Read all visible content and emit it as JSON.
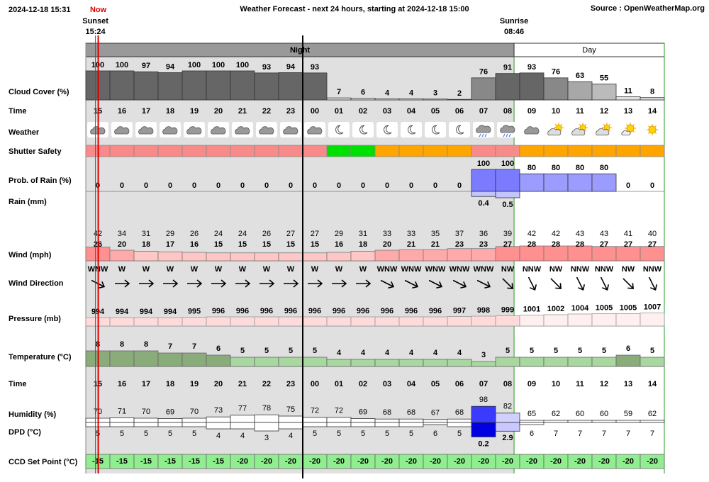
{
  "header": {
    "timestamp": "2024-12-18 15:31",
    "now_label": "Now",
    "title": "Weather Forecast - next 24 hours, starting at 2024-12-18 15:00",
    "source": "Source : OpenWeatherMap.org"
  },
  "sun": {
    "sunset_label": "Sunset",
    "sunset_time": "15:24",
    "sunrise_label": "Sunrise",
    "sunrise_time": "08:46"
  },
  "periods": {
    "night": "Night",
    "day": "Day"
  },
  "row_labels": [
    "Cloud Cover (%)",
    "Time",
    "Weather",
    "Shutter Safety",
    "Prob. of Rain (%)",
    "Rain (mm)",
    "Wind (mph)",
    "Wind Direction",
    "Pressure (mb)",
    "Temperature (°C)",
    "Time",
    "Humidity (%)",
    "DPD (°C)",
    "CCD Set Point (°C)"
  ],
  "hours": [
    "15",
    "16",
    "17",
    "18",
    "19",
    "20",
    "21",
    "22",
    "23",
    "00",
    "01",
    "02",
    "03",
    "04",
    "05",
    "06",
    "07",
    "08",
    "09",
    "10",
    "11",
    "12",
    "13",
    "14"
  ],
  "cloud_cover": [
    100,
    100,
    97,
    94,
    100,
    100,
    100,
    93,
    94,
    93,
    7,
    6,
    4,
    4,
    3,
    2,
    76,
    91,
    93,
    76,
    63,
    55,
    11,
    8
  ],
  "shutter_safety_colors": [
    "#f88a8a",
    "#f88a8a",
    "#f88a8a",
    "#f88a8a",
    "#f88a8a",
    "#f88a8a",
    "#f88a8a",
    "#f88a8a",
    "#f88a8a",
    "#f88a8a",
    "#00e000",
    "#00e000",
    "#ffa500",
    "#ffa500",
    "#ffa500",
    "#ffa500",
    "#f88a8a",
    "#f88a8a",
    "#ffa500",
    "#ffa500",
    "#ffa500",
    "#ffa500",
    "#ffa500",
    "#ffa500"
  ],
  "rain_probability": [
    0,
    0,
    0,
    0,
    0,
    0,
    0,
    0,
    0,
    0,
    0,
    0,
    0,
    0,
    0,
    0,
    100,
    100,
    80,
    80,
    80,
    80,
    0,
    0
  ],
  "rain": [
    0,
    0,
    0,
    0,
    0,
    0,
    0,
    0,
    0,
    0,
    0,
    0,
    0,
    0,
    0,
    0,
    0.4,
    0.5,
    0,
    0,
    0,
    0,
    0,
    0
  ],
  "wind_gust": [
    42,
    34,
    31,
    29,
    26,
    24,
    24,
    26,
    27,
    27,
    29,
    31,
    33,
    33,
    35,
    37,
    36,
    39,
    42,
    42,
    43,
    43,
    41,
    40
  ],
  "wind_speed": [
    26,
    20,
    18,
    17,
    16,
    15,
    15,
    15,
    15,
    15,
    16,
    18,
    20,
    21,
    21,
    23,
    23,
    27,
    28,
    28,
    28,
    27,
    27,
    27
  ],
  "wind_direction": [
    "WNW",
    "W",
    "W",
    "W",
    "W",
    "W",
    "W",
    "W",
    "W",
    "W",
    "W",
    "W",
    "WNW",
    "WNW",
    "WNW",
    "WNW",
    "WNW",
    "NW",
    "NNW",
    "NW",
    "NNW",
    "NNW",
    "NW",
    "NNW"
  ],
  "pressure": [
    994,
    994,
    994,
    994,
    995,
    996,
    996,
    996,
    996,
    996,
    996,
    996,
    996,
    996,
    996,
    997,
    998,
    999,
    1001,
    1002,
    1004,
    1005,
    1005,
    1007
  ],
  "temperature": [
    8,
    8,
    8,
    7,
    7,
    6,
    5,
    5,
    5,
    5,
    4,
    4,
    4,
    4,
    4,
    4,
    3,
    5,
    5,
    5,
    5,
    5,
    6,
    5
  ],
  "humidity": [
    70,
    71,
    70,
    69,
    70,
    73,
    77,
    78,
    75,
    72,
    72,
    69,
    68,
    68,
    67,
    68,
    98,
    82,
    65,
    62,
    60,
    60,
    59,
    62
  ],
  "dpd": [
    5,
    5,
    5,
    5,
    5,
    4,
    4,
    3,
    4,
    5,
    5,
    5,
    5,
    5,
    6,
    5,
    0.2,
    2.9,
    6,
    7,
    7,
    7,
    7,
    7
  ],
  "ccd_set_point": [
    -15,
    -15,
    -15,
    -15,
    -15,
    -15,
    -20,
    -20,
    -20,
    -20,
    -20,
    -20,
    -20,
    -20,
    -20,
    -20,
    -20,
    -20,
    -20,
    -20,
    -20,
    -20,
    -20,
    -20
  ]
}
